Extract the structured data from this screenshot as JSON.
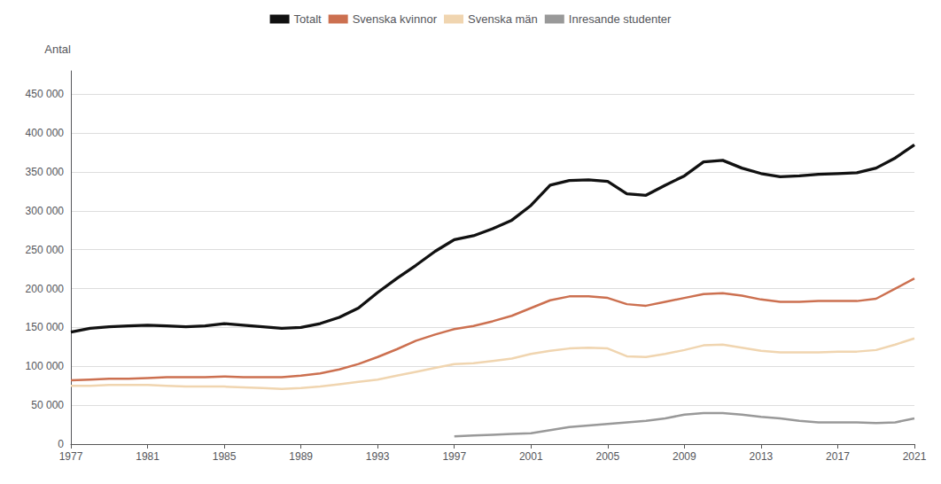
{
  "chart_data": {
    "type": "line",
    "ylabel": "Antal",
    "x": [
      1977,
      1978,
      1979,
      1980,
      1981,
      1982,
      1983,
      1984,
      1985,
      1986,
      1987,
      1988,
      1989,
      1990,
      1991,
      1992,
      1993,
      1994,
      1995,
      1996,
      1997,
      1998,
      1999,
      2000,
      2001,
      2002,
      2003,
      2004,
      2005,
      2006,
      2007,
      2008,
      2009,
      2010,
      2011,
      2012,
      2013,
      2014,
      2015,
      2016,
      2017,
      2018,
      2019,
      2020,
      2021
    ],
    "series": [
      {
        "name": "Totalt",
        "color": "#111111",
        "values": [
          144000,
          149000,
          151000,
          152000,
          153000,
          152000,
          151000,
          152000,
          155000,
          153000,
          151000,
          149000,
          150000,
          155000,
          163000,
          175000,
          195000,
          213000,
          230000,
          248000,
          263000,
          268000,
          277000,
          288000,
          307000,
          333000,
          339000,
          340000,
          338000,
          322000,
          320000,
          333000,
          345000,
          363000,
          365000,
          355000,
          348000,
          344000,
          345000,
          347000,
          348000,
          349000,
          355000,
          368000,
          385000
        ]
      },
      {
        "name": "Svenska kvinnor",
        "color": "#cc7050",
        "values": [
          82000,
          83000,
          84000,
          84000,
          85000,
          86000,
          86000,
          86000,
          87000,
          86000,
          86000,
          86000,
          88000,
          91000,
          96000,
          103000,
          112000,
          122000,
          133000,
          141000,
          148000,
          152000,
          158000,
          165000,
          175000,
          185000,
          190000,
          190000,
          188000,
          180000,
          178000,
          183000,
          188000,
          193000,
          194000,
          191000,
          186000,
          183000,
          183000,
          184000,
          184000,
          184000,
          187000,
          200000,
          213000
        ]
      },
      {
        "name": "Svenska män",
        "color": "#f0d5b0",
        "values": [
          75000,
          75000,
          76000,
          76000,
          76000,
          75000,
          74000,
          74000,
          74000,
          73000,
          72000,
          71000,
          72000,
          74000,
          77000,
          80000,
          83000,
          88000,
          93000,
          98000,
          103000,
          104000,
          107000,
          110000,
          116000,
          120000,
          123000,
          124000,
          123000,
          113000,
          112000,
          116000,
          121000,
          127000,
          128000,
          124000,
          120000,
          118000,
          118000,
          118000,
          119000,
          119000,
          121000,
          128000,
          136000
        ]
      },
      {
        "name": "Inresande studenter",
        "color": "#999999",
        "values": [
          null,
          null,
          null,
          null,
          null,
          null,
          null,
          null,
          null,
          null,
          null,
          null,
          null,
          null,
          null,
          null,
          null,
          null,
          null,
          null,
          10000,
          11000,
          12000,
          13000,
          14000,
          18000,
          22000,
          24000,
          26000,
          28000,
          30000,
          33000,
          38000,
          40000,
          40000,
          38000,
          35000,
          33000,
          30000,
          28000,
          28000,
          28000,
          27000,
          28000,
          33000
        ]
      }
    ],
    "xlim": [
      1977,
      2021
    ],
    "xticks": [
      1977,
      1981,
      1985,
      1989,
      1993,
      1997,
      2001,
      2005,
      2009,
      2013,
      2017,
      2021
    ],
    "ylim": [
      0,
      480000
    ],
    "yticks": [
      0,
      {
        "value": 50000,
        "label": "50 000"
      },
      {
        "value": 100000,
        "label": "100 000"
      },
      {
        "value": 150000,
        "label": "150 000"
      },
      {
        "value": 200000,
        "label": "200 000"
      },
      {
        "value": 250000,
        "label": "250 000"
      },
      {
        "value": 300000,
        "label": "300 000"
      },
      {
        "value": 350000,
        "label": "350 000"
      },
      {
        "value": 400000,
        "label": "400 000"
      },
      {
        "value": 450000,
        "label": "450 000"
      }
    ],
    "grid": true,
    "legend": "top"
  }
}
